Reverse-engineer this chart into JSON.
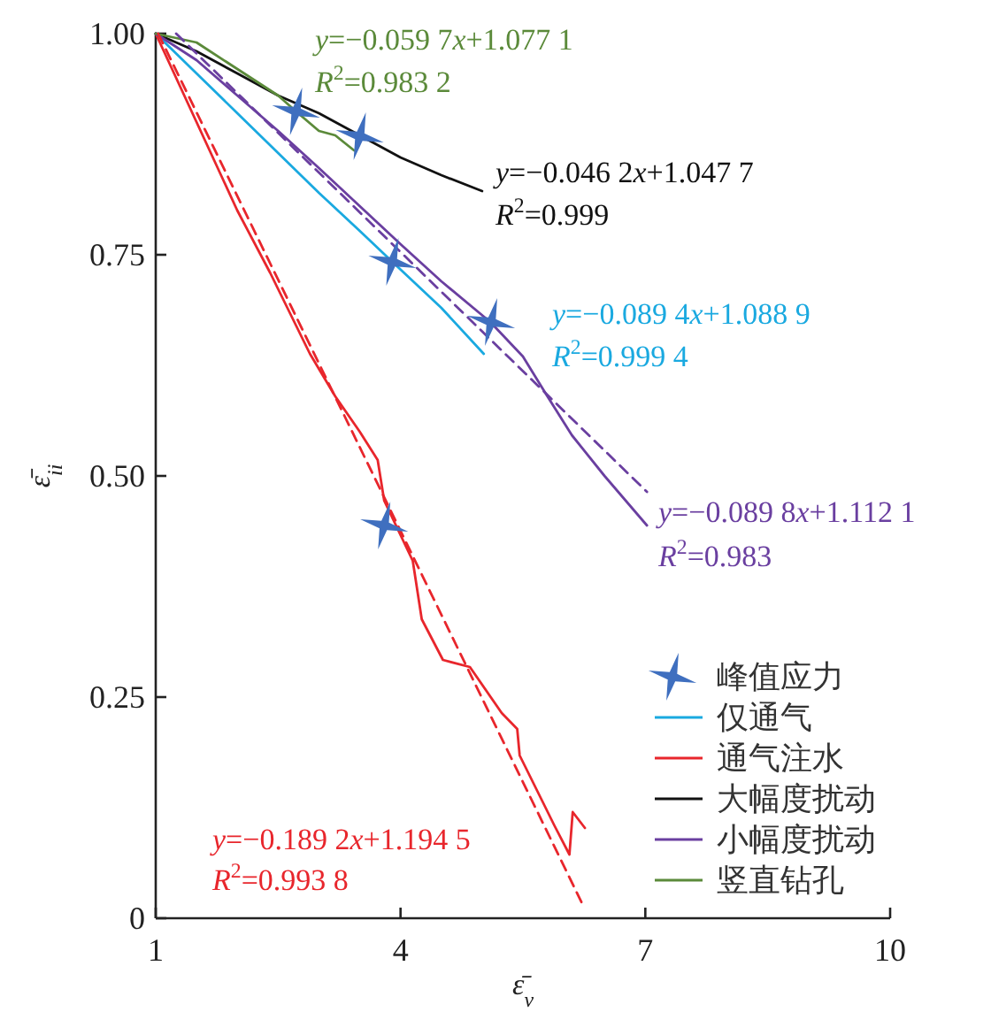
{
  "chart_data": {
    "type": "line",
    "xlabel": "ε̄$_{v}$",
    "ylabel": "ε̄$_{ii}$",
    "xlim": [
      1,
      10
    ],
    "ylim": [
      0,
      1
    ],
    "xticks": [
      1,
      4,
      7,
      10
    ],
    "yticks": [
      0,
      {
        "value": 0.25,
        "label": "0.25"
      },
      {
        "value": 0.5,
        "label": "0.50"
      },
      {
        "value": 0.75,
        "label": "0.75"
      },
      {
        "value": 1,
        "label": "1.00"
      }
    ],
    "grid": false,
    "legend": "bottom right",
    "line_style": "solid",
    "marker": "none",
    "series": [
      {
        "name": "峰值应力",
        "type": "scatter",
        "marker": "star",
        "color": "#3f6fbf",
        "x": [
          2.72,
          3.5,
          3.9,
          5.11,
          3.8
        ],
        "values": [
          0.912,
          0.884,
          0.742,
          0.674,
          0.444
        ]
      },
      {
        "name": "仅通气",
        "color": "#1aa9e0",
        "x": [
          1,
          1.5,
          2,
          2.5,
          3,
          3.5,
          3.9,
          4.5,
          5.02
        ],
        "values": [
          1,
          0.955,
          0.91,
          0.865,
          0.82,
          0.777,
          0.742,
          0.69,
          0.638
        ]
      },
      {
        "name": "通气注水",
        "color": "#e8262c",
        "x": [
          1,
          1.3,
          1.6,
          2,
          2.4,
          2.89,
          3.2,
          3.5,
          3.72,
          3.8,
          4.15,
          4.26,
          4.52,
          4.85,
          5.24,
          5.43,
          5.46,
          5.89,
          6.07,
          6.11,
          6.26
        ],
        "values": [
          1,
          0.94,
          0.88,
          0.8,
          0.73,
          0.638,
          0.59,
          0.55,
          0.518,
          0.472,
          0.404,
          0.338,
          0.292,
          0.284,
          0.232,
          0.214,
          0.184,
          0.104,
          0.072,
          0.12,
          0.102
        ]
      },
      {
        "name": "大幅度扰动",
        "color": "#111111",
        "x": [
          1,
          1.5,
          2,
          2.5,
          3,
          3.5,
          4,
          4.5,
          5
        ],
        "values": [
          1,
          0.98,
          0.955,
          0.93,
          0.91,
          0.885,
          0.86,
          0.84,
          0.822
        ]
      },
      {
        "name": "小幅度扰动",
        "color": "#6a3fa0",
        "x": [
          1,
          1.5,
          2,
          2.5,
          3,
          3.5,
          4,
          4.5,
          5.1,
          5.5,
          5.8,
          6.1,
          6.5,
          7.02
        ],
        "values": [
          1,
          0.97,
          0.93,
          0.89,
          0.848,
          0.805,
          0.762,
          0.72,
          0.674,
          0.635,
          0.59,
          0.546,
          0.5,
          0.444
        ]
      },
      {
        "name": "竖直钻孔",
        "color": "#5b8a3a",
        "x": [
          1,
          1.5,
          2,
          2.5,
          2.72,
          3,
          3.2,
          3.43
        ],
        "values": [
          1,
          0.99,
          0.96,
          0.93,
          0.912,
          0.89,
          0.885,
          0.868
        ]
      },
      {
        "color": "#e8262c",
        "line_style": "dashed",
        "x": [
          1.03,
          6.25
        ],
        "values": [
          1.0,
          0.012
        ]
      },
      {
        "color": "#6a3fa0",
        "line_style": "dashed",
        "x": [
          1.25,
          7.02
        ],
        "values": [
          1.0,
          0.482
        ]
      }
    ],
    "annotations": [
      "y=−0.089 4x+1.088 9",
      "R$^{2}$=0.999 4",
      "y=−0.189 2x+1.194 5",
      "R$^{2}$=0.993 8",
      "y=−0.046 2x+1.047 7",
      "R$^{2}$=0.999",
      "y=−0.089 8x+1.112 1",
      "R$^{2}$=0.983",
      "y=−0.059 7x+1.077 1",
      "R$^{2}$=0.983 2"
    ]
  }
}
